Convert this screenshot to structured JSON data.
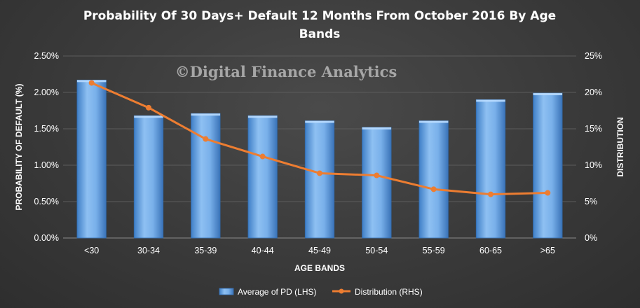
{
  "chart_data": {
    "type": "bar",
    "title_line1": "Probability  Of 30 Days+ Default 12 Months From October 2016 By Age",
    "title_line2": "Bands",
    "watermark": "©Digital Finance Analytics",
    "xlabel": "AGE BANDS",
    "ylabel": "PROBABILITY OF DEFAULT (%)",
    "ylabel_right": "DISTRIBUTION",
    "categories": [
      "<30",
      "30-34",
      "35-39",
      "40-44",
      "45-49",
      "50-54",
      "55-59",
      "60-65",
      ">65"
    ],
    "ylim": [
      0,
      2.5
    ],
    "ylim_right": [
      0,
      25
    ],
    "yticks": [
      "0.00%",
      "0.50%",
      "1.00%",
      "1.50%",
      "2.00%",
      "2.50%"
    ],
    "yticks_right": [
      "0%",
      "5%",
      "10%",
      "15%",
      "20%",
      "25%"
    ],
    "series": [
      {
        "name": "Average of PD (LHS)",
        "type": "bar",
        "axis": "left",
        "color": "#5b9bd5",
        "values": [
          2.17,
          1.68,
          1.71,
          1.68,
          1.61,
          1.52,
          1.61,
          1.9,
          1.99
        ]
      },
      {
        "name": "Distribution (RHS)",
        "type": "line",
        "axis": "right",
        "color": "#ed7d31",
        "values": [
          21.3,
          17.9,
          13.6,
          11.2,
          8.9,
          8.6,
          6.7,
          6.0,
          6.2
        ]
      }
    ],
    "grid": true,
    "legend_position": "bottom"
  }
}
